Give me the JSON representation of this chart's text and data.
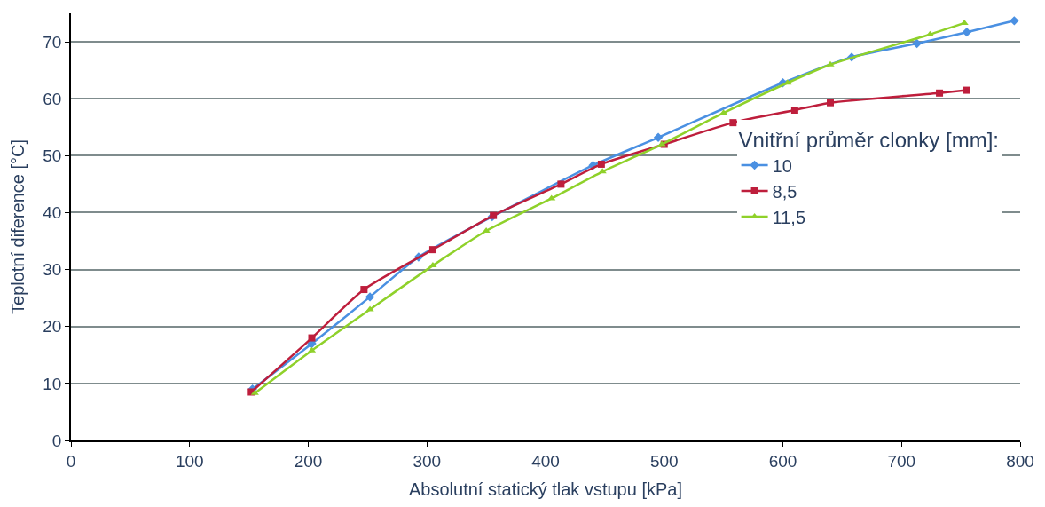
{
  "chart_data": {
    "type": "line",
    "xlabel": "Absolutní statický tlak vstupu [kPa]",
    "ylabel": "Teplotní diference [°C]",
    "legend_title": "Vnitřní průměr clonky [mm]:",
    "xlim": [
      0,
      800
    ],
    "xticks": [
      0,
      100,
      200,
      300,
      400,
      500,
      600,
      700,
      800
    ],
    "ylim": [
      0,
      75
    ],
    "yticks": [
      0,
      10,
      20,
      30,
      40,
      50,
      60,
      70
    ],
    "grid": "y",
    "legend": "right",
    "series": [
      {
        "name": "10",
        "color": "#4a90e2",
        "marker": "diamond",
        "x": [
          153,
          203,
          252,
          293,
          355,
          440,
          495,
          600,
          658,
          713,
          755,
          795
        ],
        "values": [
          9,
          17,
          25.2,
          32.2,
          39.3,
          48.3,
          53.2,
          62.8,
          67.3,
          69.7,
          71.7,
          73.7
        ]
      },
      {
        "name": "8,5",
        "color": "#be1e3c",
        "marker": "square",
        "x": [
          152,
          203,
          247,
          305,
          356,
          413,
          447,
          500,
          558,
          610,
          640,
          732,
          755
        ],
        "values": [
          8.5,
          18,
          26.5,
          33.5,
          39.5,
          45,
          48.5,
          52,
          55.8,
          58,
          59.3,
          61,
          61.5
        ]
      },
      {
        "name": "11,5",
        "color": "#8fd12a",
        "marker": "triangle",
        "x": [
          155,
          203,
          252,
          305,
          350,
          405,
          448,
          498,
          550,
          604,
          640,
          724,
          753
        ],
        "values": [
          8.3,
          15.8,
          23,
          30.7,
          36.8,
          42.5,
          47.2,
          52,
          57.5,
          62.8,
          66,
          71.3,
          73.3
        ]
      }
    ]
  }
}
